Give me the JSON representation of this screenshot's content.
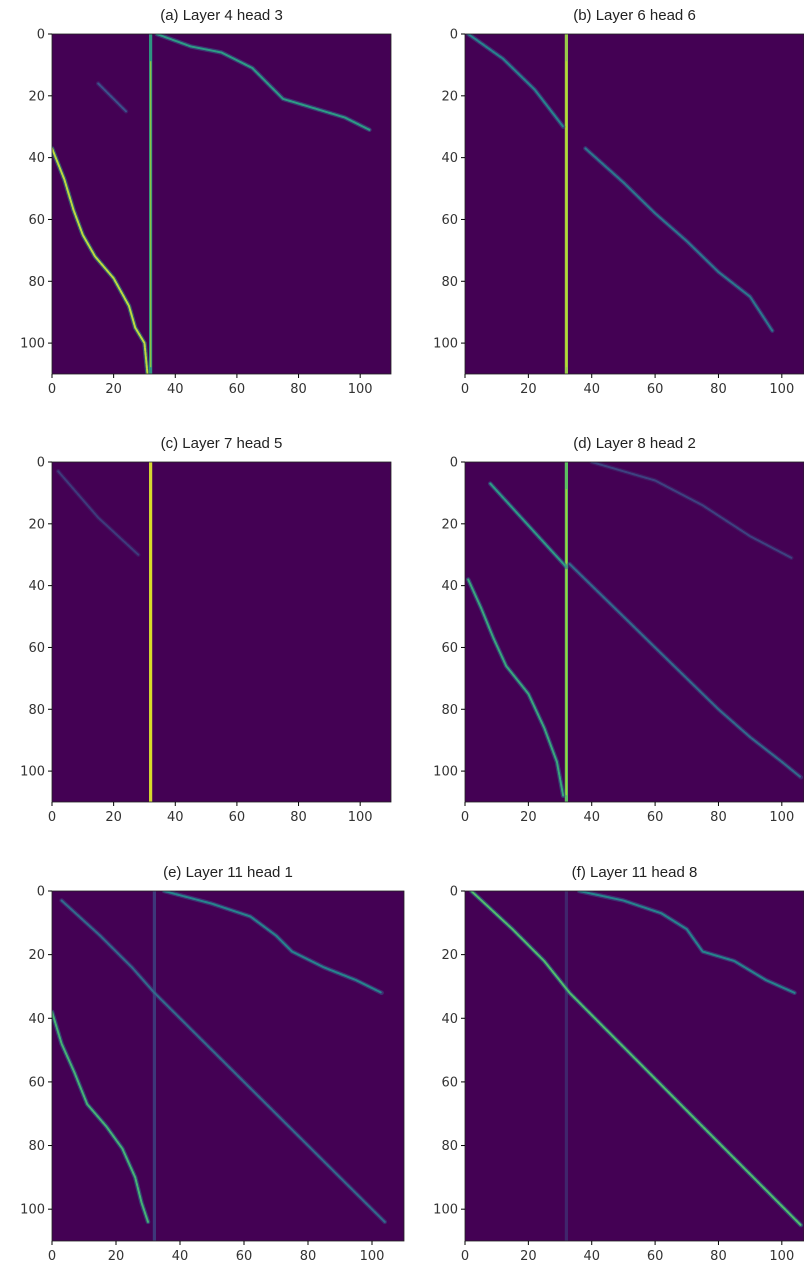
{
  "colors": {
    "background": "#440154",
    "low": "#471164",
    "mid": "#31688e",
    "high": "#35b779",
    "peak": "#dde318"
  },
  "chart_data": [
    {
      "type": "heatmap",
      "title": "(a) Layer 4 head 3",
      "xlim": [
        0,
        110
      ],
      "ylim": [
        110,
        0
      ],
      "xticks": [
        "0",
        "20",
        "40",
        "60",
        "80",
        "100"
      ],
      "yticks": [
        "0",
        "20",
        "40",
        "60",
        "80",
        "100"
      ],
      "vertical_column": {
        "x": 32,
        "intensity": 0.55
      },
      "traces": [
        {
          "points": [
            [
              34,
              0
            ],
            [
              45,
              4
            ],
            [
              55,
              6
            ],
            [
              65,
              11
            ],
            [
              70,
              16
            ],
            [
              75,
              21
            ],
            [
              85,
              24
            ],
            [
              95,
              27
            ],
            [
              103,
              31
            ]
          ],
          "intensity": 0.55
        },
        {
          "points": [
            [
              0,
              37
            ],
            [
              4,
              47
            ],
            [
              7,
              57
            ],
            [
              10,
              65
            ],
            [
              14,
              72
            ],
            [
              20,
              79
            ],
            [
              25,
              88
            ],
            [
              27,
              95
            ],
            [
              30,
              100
            ],
            [
              31,
              110
            ]
          ],
          "intensity": 0.9
        },
        {
          "points": [
            [
              15,
              16
            ],
            [
              24,
              25
            ]
          ],
          "intensity": 0.25
        }
      ]
    },
    {
      "type": "heatmap",
      "title": "(b) Layer 6 head 6",
      "xlim": [
        0,
        107
      ],
      "ylim": [
        110,
        0
      ],
      "xticks": [
        "0",
        "20",
        "40",
        "60",
        "80",
        "100"
      ],
      "yticks": [
        "0",
        "20",
        "40",
        "60",
        "80",
        "100"
      ],
      "vertical_column": {
        "x": 32,
        "intensity": 0.85
      },
      "traces": [
        {
          "points": [
            [
              1,
              0
            ],
            [
              12,
              8
            ],
            [
              22,
              18
            ],
            [
              31,
              30
            ]
          ],
          "intensity": 0.45
        },
        {
          "points": [
            [
              38,
              37
            ],
            [
              50,
              48
            ],
            [
              60,
              58
            ],
            [
              70,
              67
            ],
            [
              80,
              77
            ],
            [
              90,
              85
            ],
            [
              97,
              96
            ]
          ],
          "intensity": 0.4
        }
      ]
    },
    {
      "type": "heatmap",
      "title": "(c) Layer 7 head 5",
      "xlim": [
        0,
        110
      ],
      "ylim": [
        110,
        0
      ],
      "xticks": [
        "0",
        "20",
        "40",
        "60",
        "80",
        "100"
      ],
      "yticks": [
        "0",
        "20",
        "40",
        "60",
        "80",
        "100"
      ],
      "vertical_column": {
        "x": 32,
        "intensity": 0.95
      },
      "traces": [
        {
          "points": [
            [
              2,
              3
            ],
            [
              15,
              18
            ],
            [
              28,
              30
            ]
          ],
          "intensity": 0.18
        }
      ]
    },
    {
      "type": "heatmap",
      "title": "(d) Layer 8 head 2",
      "xlim": [
        0,
        107
      ],
      "ylim": [
        110,
        0
      ],
      "xticks": [
        "0",
        "20",
        "40",
        "60",
        "80",
        "100"
      ],
      "yticks": [
        "0",
        "20",
        "40",
        "60",
        "80",
        "100"
      ],
      "vertical_column": {
        "x": 32,
        "intensity": 0.75
      },
      "traces": [
        {
          "points": [
            [
              8,
              7
            ],
            [
              16,
              16
            ],
            [
              24,
              25
            ],
            [
              32,
              34
            ]
          ],
          "intensity": 0.55
        },
        {
          "points": [
            [
              33,
              33
            ],
            [
              40,
              40
            ],
            [
              50,
              50
            ],
            [
              60,
              60
            ],
            [
              70,
              70
            ],
            [
              80,
              80
            ],
            [
              90,
              89
            ],
            [
              100,
              97
            ],
            [
              106,
              102
            ]
          ],
          "intensity": 0.35
        },
        {
          "points": [
            [
              1,
              38
            ],
            [
              5,
              47
            ],
            [
              9,
              57
            ],
            [
              13,
              66
            ],
            [
              20,
              75
            ],
            [
              25,
              86
            ],
            [
              29,
              97
            ],
            [
              31,
              108
            ]
          ],
          "intensity": 0.6
        },
        {
          "points": [
            [
              40,
              0
            ],
            [
              60,
              6
            ],
            [
              75,
              14
            ],
            [
              90,
              24
            ],
            [
              103,
              31
            ]
          ],
          "intensity": 0.2
        }
      ]
    },
    {
      "type": "heatmap",
      "title": "(e) Layer 11 head 1",
      "xlim": [
        0,
        110
      ],
      "ylim": [
        110,
        0
      ],
      "xticks": [
        "0",
        "20",
        "40",
        "60",
        "80",
        "100"
      ],
      "yticks": [
        "0",
        "20",
        "40",
        "60",
        "80",
        "100"
      ],
      "vertical_column": {
        "x": 32,
        "intensity": 0.18
      },
      "traces": [
        {
          "points": [
            [
              3,
              3
            ],
            [
              15,
              14
            ],
            [
              25,
              24
            ],
            [
              32,
              32
            ],
            [
              45,
              45
            ],
            [
              60,
              60
            ],
            [
              75,
              75
            ],
            [
              90,
              90
            ],
            [
              104,
              104
            ]
          ],
          "intensity": 0.35
        },
        {
          "points": [
            [
              35,
              0
            ],
            [
              50,
              4
            ],
            [
              62,
              8
            ],
            [
              70,
              14
            ],
            [
              75,
              19
            ],
            [
              85,
              24
            ],
            [
              95,
              28
            ],
            [
              103,
              32
            ]
          ],
          "intensity": 0.45
        },
        {
          "points": [
            [
              0,
              38
            ],
            [
              3,
              48
            ],
            [
              7,
              57
            ],
            [
              11,
              67
            ],
            [
              17,
              74
            ],
            [
              22,
              81
            ],
            [
              26,
              90
            ],
            [
              28,
              98
            ],
            [
              30,
              104
            ]
          ],
          "intensity": 0.65
        }
      ]
    },
    {
      "type": "heatmap",
      "title": "(f) Layer 11 head 8",
      "xlim": [
        0,
        107
      ],
      "ylim": [
        110,
        0
      ],
      "xticks": [
        "0",
        "20",
        "40",
        "60",
        "80",
        "100"
      ],
      "yticks": [
        "0",
        "20",
        "40",
        "60",
        "80",
        "100"
      ],
      "vertical_column": {
        "x": 32,
        "intensity": 0.12
      },
      "traces": [
        {
          "points": [
            [
              2,
              0
            ],
            [
              15,
              12
            ],
            [
              25,
              22
            ],
            [
              33,
              32
            ],
            [
              45,
              44
            ],
            [
              55,
              54
            ],
            [
              65,
              64
            ],
            [
              75,
              74
            ],
            [
              85,
              84
            ],
            [
              95,
              94
            ],
            [
              106,
              105
            ]
          ],
          "intensity": 0.7
        },
        {
          "points": [
            [
              36,
              0
            ],
            [
              50,
              3
            ],
            [
              62,
              7
            ],
            [
              70,
              12
            ],
            [
              75,
              19
            ],
            [
              85,
              22
            ],
            [
              95,
              28
            ],
            [
              104,
              32
            ]
          ],
          "intensity": 0.45
        }
      ]
    }
  ]
}
